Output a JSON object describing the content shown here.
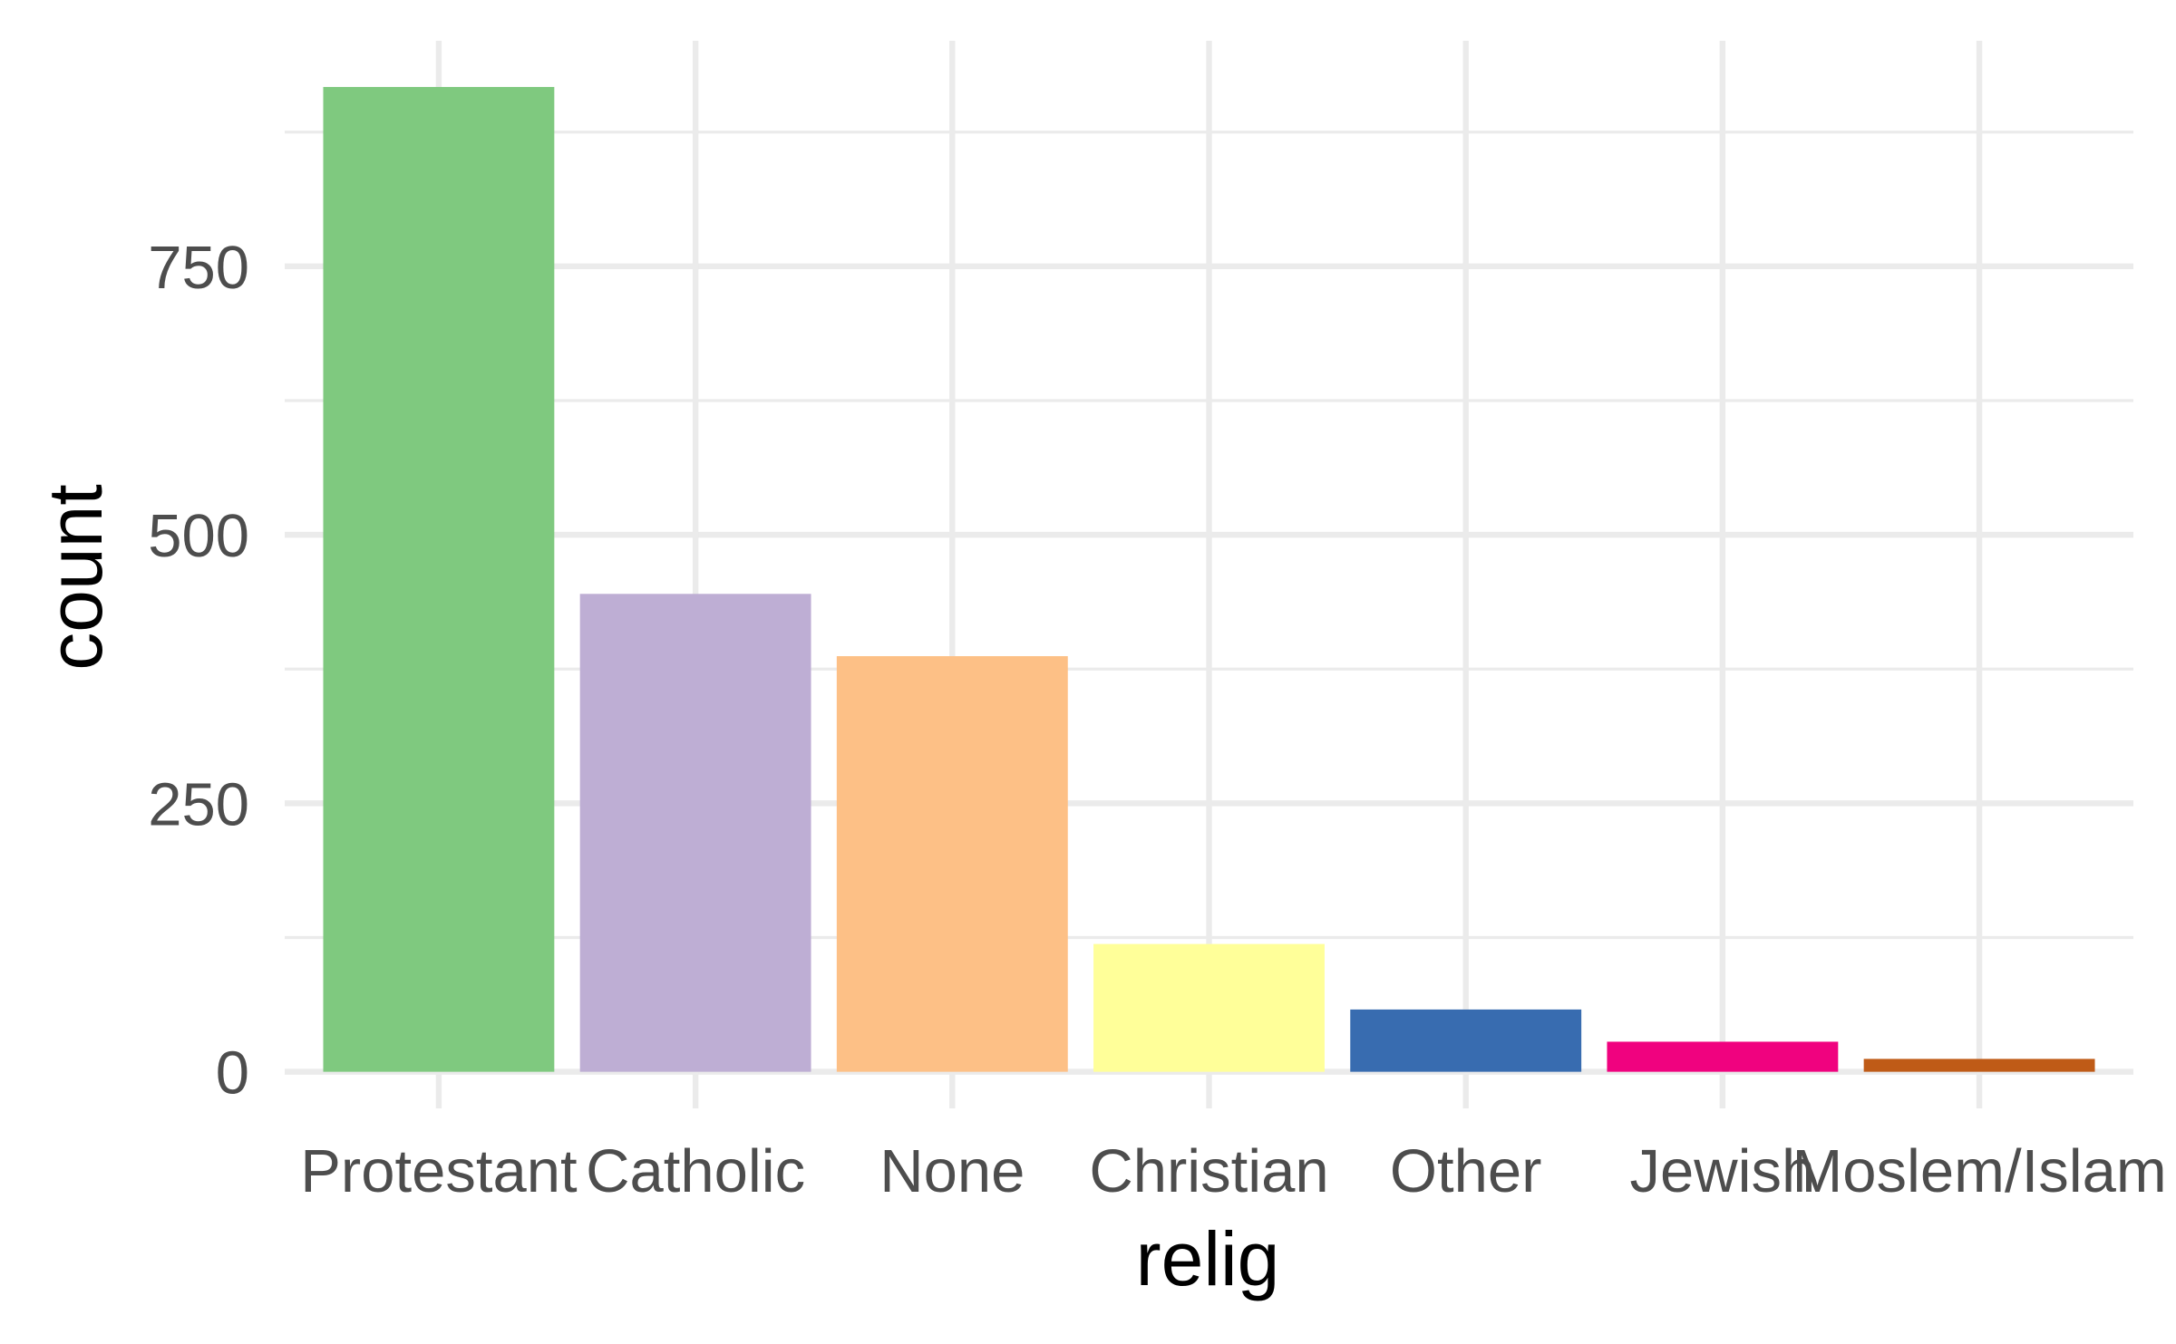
{
  "chart_data": {
    "type": "bar",
    "title": "",
    "xlabel": "relig",
    "ylabel": "count",
    "categories": [
      "Protestant",
      "Catholic",
      "None",
      "Christian",
      "Other",
      "Jewish",
      "Moslem/Islam"
    ],
    "values": [
      917,
      445,
      387,
      119,
      58,
      28,
      12
    ],
    "colors": [
      "#7fc97f",
      "#beaed4",
      "#fdc086",
      "#ffff99",
      "#386cb0",
      "#f0027f",
      "#bf5b17"
    ],
    "ylim": [
      -2,
      960
    ],
    "y_ticks": [
      0,
      250,
      500,
      750
    ],
    "y_tick_labels": [
      "0",
      "250",
      "500",
      "750"
    ],
    "grid": true,
    "legend": "none",
    "theme": "minimal"
  }
}
